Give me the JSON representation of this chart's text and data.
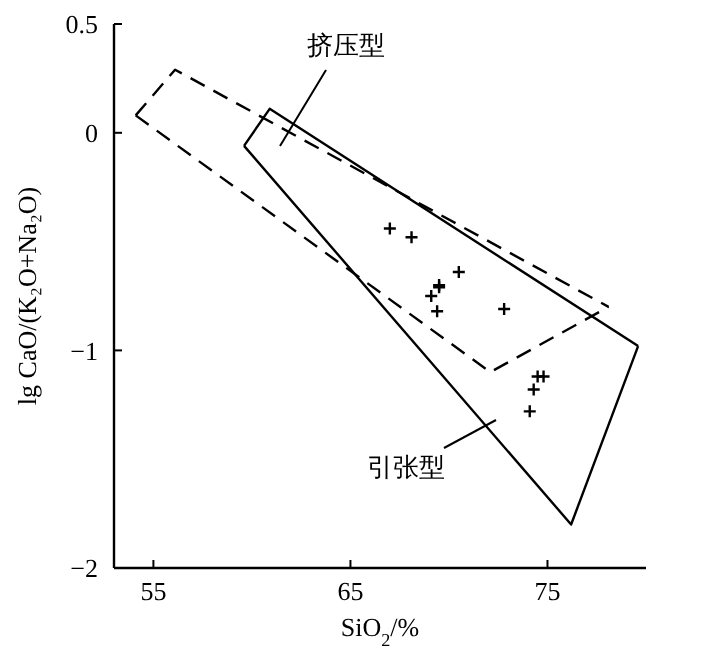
{
  "chart_data": {
    "type": "scatter",
    "xlabel": "SiO$_{2}$/%",
    "ylabel": "lg CaO/(K₂O+Na₂O)",
    "xlim": [
      53,
      80
    ],
    "xticks": [
      55,
      65,
      75
    ],
    "ylim": [
      -2,
      0.5
    ],
    "yticks": [
      {
        "value": -2,
        "label": "−2"
      },
      {
        "value": -1,
        "label": "−1"
      },
      0,
      0.5
    ],
    "grid": false,
    "series": [
      {
        "type": "line",
        "color": "#000000",
        "line_style": "dashed",
        "marker": "none",
        "x": [
          54.1,
          56.1,
          78.1
        ],
        "values": [
          0.08,
          0.29,
          -0.8
        ]
      },
      {
        "type": "line",
        "color": "#000000",
        "line_style": "dashed",
        "marker": "none",
        "x": [
          54.1,
          72.1,
          78.1
        ],
        "values": [
          0.08,
          -1.1,
          -0.8
        ]
      },
      {
        "type": "line",
        "color": "#000000",
        "line_style": "solid",
        "marker": "none",
        "x": [
          59.6,
          60.9,
          79.6
        ],
        "values": [
          -0.06,
          0.11,
          -0.98
        ]
      },
      {
        "type": "line",
        "color": "#000000",
        "line_style": "solid",
        "marker": "none",
        "x": [
          59.6,
          76.2,
          79.6
        ],
        "values": [
          -0.06,
          -1.8,
          -0.98
        ]
      },
      {
        "color": "#000000",
        "marker": "cross",
        "x": [
          67.0,
          68.1,
          70.5,
          69.5,
          69.5,
          69.1,
          69.4,
          72.8,
          74.5,
          74.8,
          74.3,
          74.1
        ],
        "values": [
          -0.44,
          -0.48,
          -0.64,
          -0.7,
          -0.71,
          -0.75,
          -0.82,
          -0.81,
          -1.12,
          -1.12,
          -1.18,
          -1.28
        ]
      }
    ],
    "annotations": [
      "挤压型",
      "引张型"
    ]
  }
}
